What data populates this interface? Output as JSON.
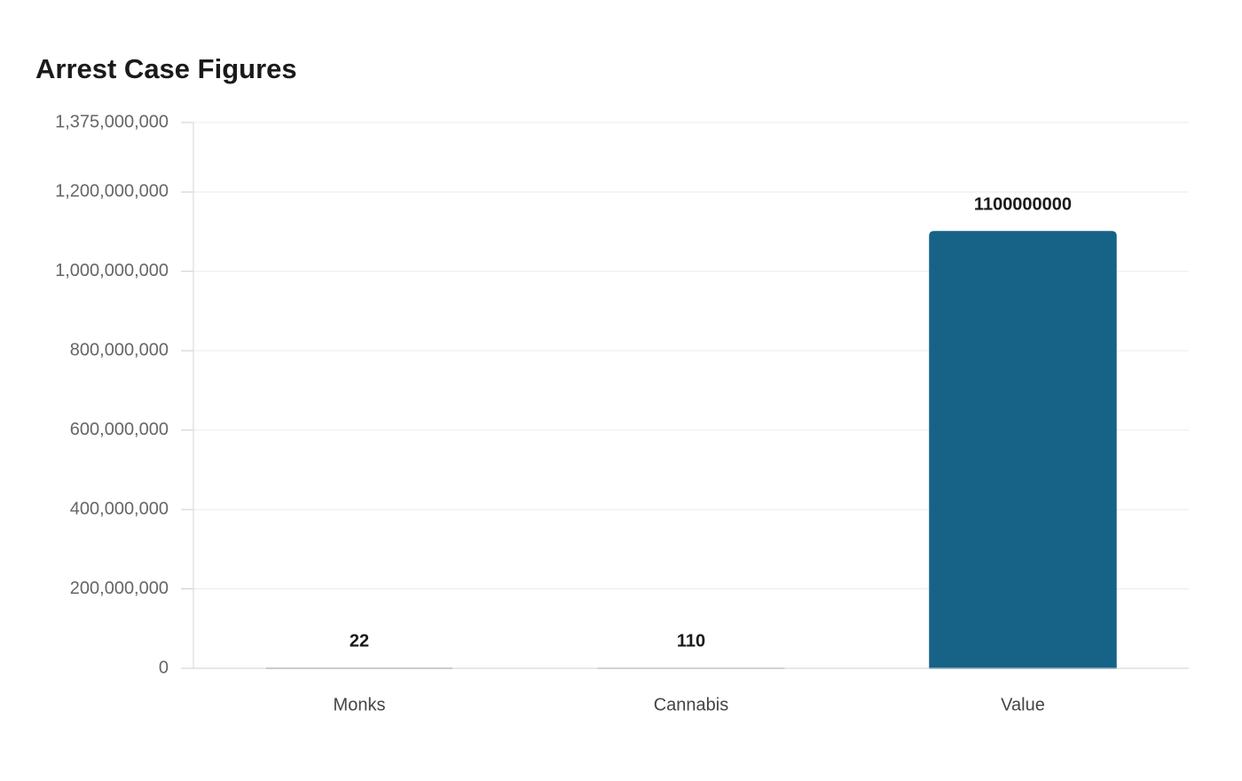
{
  "chart_data": {
    "type": "bar",
    "title": "Arrest Case Figures",
    "categories": [
      "Monks",
      "Cannabis",
      "Value"
    ],
    "values": [
      22,
      110,
      1100000000
    ],
    "colors": [
      "#8a8f94",
      "#9fb1c2",
      "#176287"
    ],
    "ylim": [
      0,
      1375000000
    ],
    "yticks": [
      0,
      {
        "value": 200000000,
        "label": "200,000,000"
      },
      {
        "value": 400000000,
        "label": "400,000,000"
      },
      {
        "value": 600000000,
        "label": "600,000,000"
      },
      {
        "value": 800000000,
        "label": "800,000,000"
      },
      {
        "value": 1000000000,
        "label": "1,000,000,000"
      },
      {
        "value": 1200000000,
        "label": "1,200,000,000"
      },
      {
        "value": 1375000000,
        "label": "1,375,000,000"
      }
    ],
    "grid": true
  }
}
